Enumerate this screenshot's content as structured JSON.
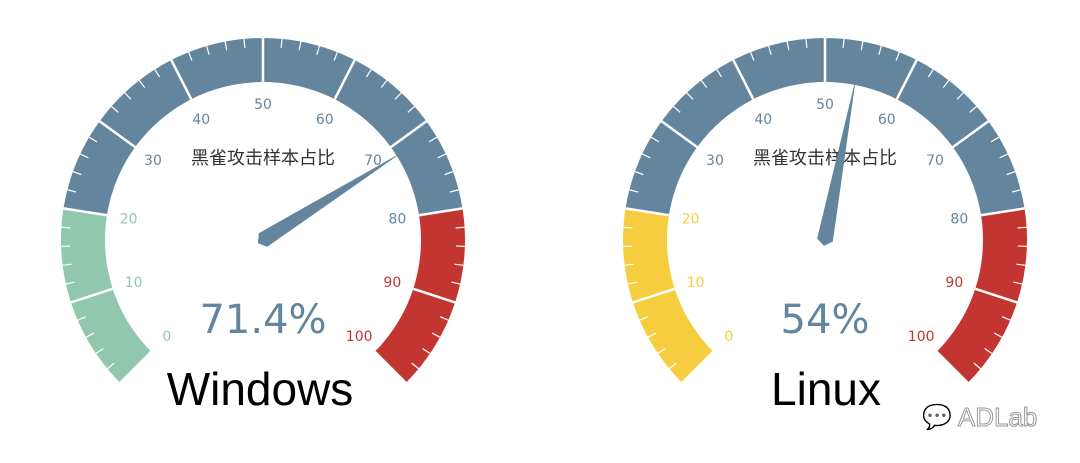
{
  "chart_data": [
    {
      "type": "gauge",
      "title": "黑雀攻击样本占比",
      "value": 71.4,
      "detail": "71.4%",
      "min": 0,
      "max": 100,
      "tick_labels": [
        "0",
        "10",
        "20",
        "30",
        "40",
        "50",
        "60",
        "70",
        "80",
        "90",
        "100"
      ],
      "bands": [
        {
          "to": 0.2,
          "color": "#91c7ae"
        },
        {
          "to": 0.8,
          "color": "#63869e"
        },
        {
          "to": 1.0,
          "color": "#c23531"
        }
      ],
      "label": "Windows"
    },
    {
      "type": "gauge",
      "title": "黑雀攻击样本占比",
      "value": 54,
      "detail": "54%",
      "min": 0,
      "max": 100,
      "tick_labels": [
        "0",
        "10",
        "20",
        "30",
        "40",
        "50",
        "60",
        "70",
        "80",
        "90",
        "100"
      ],
      "bands": [
        {
          "to": 0.2,
          "color": "#f5cd3f"
        },
        {
          "to": 0.8,
          "color": "#63869e"
        },
        {
          "to": 1.0,
          "color": "#c23531"
        }
      ],
      "label": "Linux"
    }
  ],
  "watermark": "ADLab"
}
